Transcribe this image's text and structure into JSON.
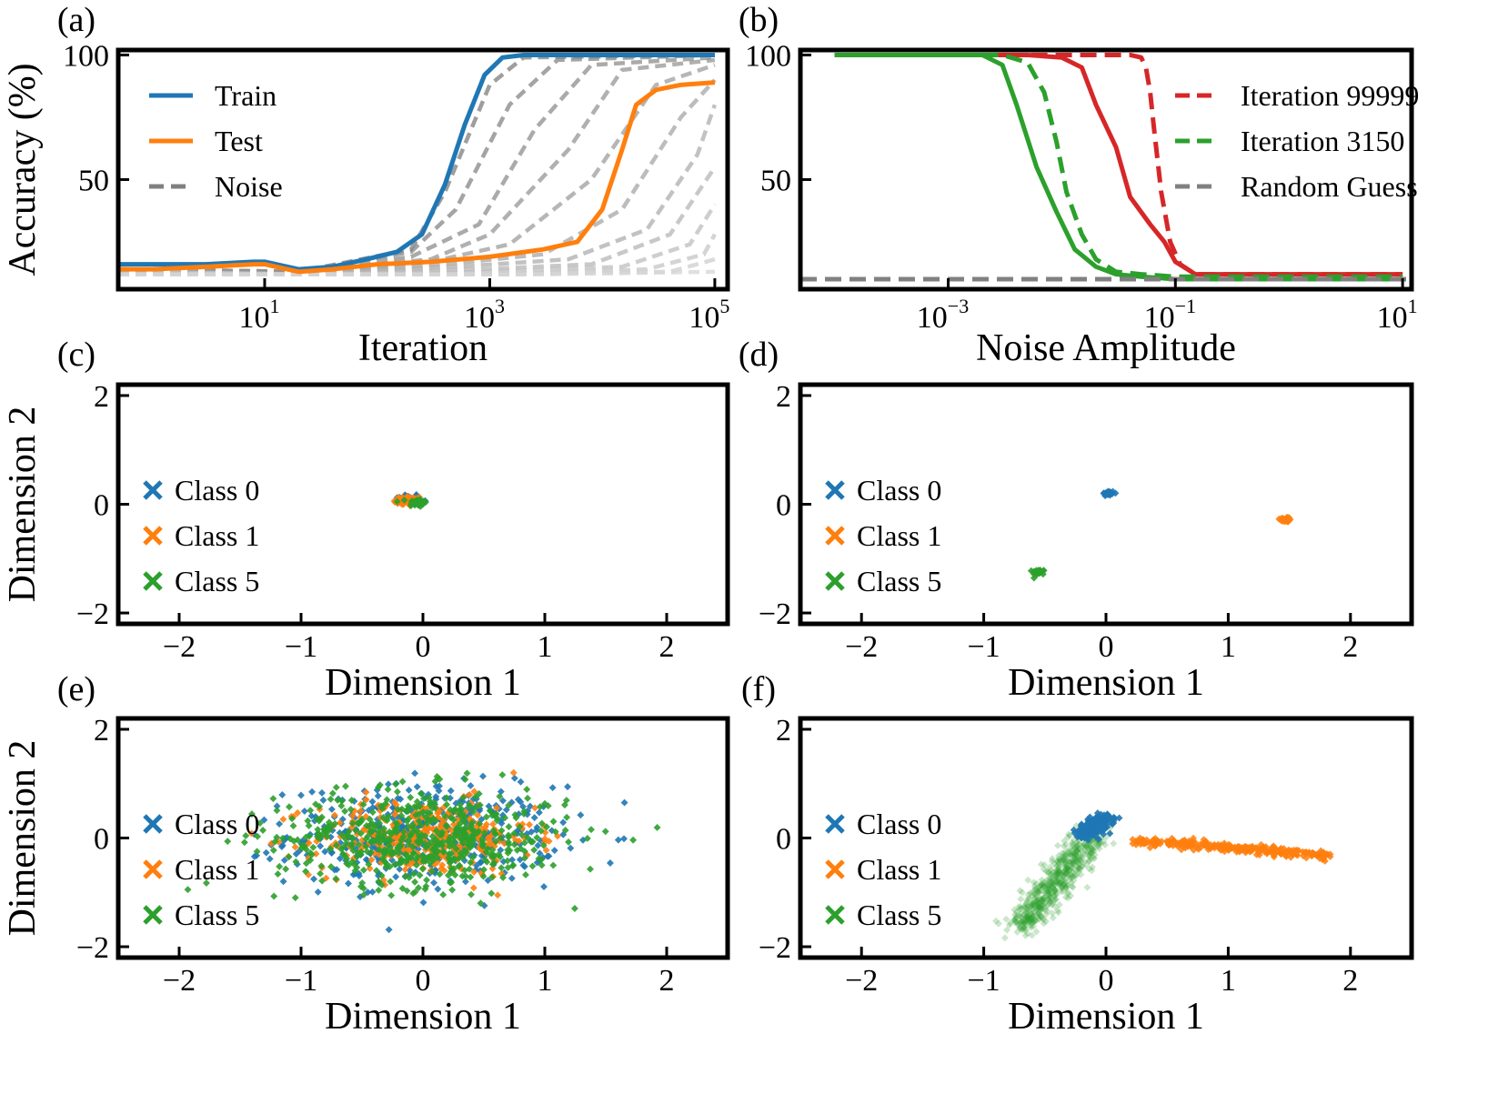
{
  "chart_data": [
    {
      "panel": "(a)",
      "type": "line",
      "xscale": "log",
      "xlabel": "Iteration",
      "ylabel": "Accuracy (%)",
      "xlim": [
        0.5,
        130000
      ],
      "ylim": [
        6,
        102
      ],
      "xticks": [
        {
          "value": 10,
          "base": "10",
          "exp": "1"
        },
        {
          "value": 1000,
          "base": "10",
          "exp": "3"
        },
        {
          "value": 100000,
          "base": "10",
          "exp": "5"
        }
      ],
      "yticks": [
        {
          "value": 50,
          "label": "50"
        },
        {
          "value": 100,
          "label": "100"
        }
      ],
      "legend": {
        "position": "upper-left",
        "entries": [
          {
            "label": "Train",
            "color": "#1f77b4",
            "style": "solid"
          },
          {
            "label": "Test",
            "color": "#ff7f0e",
            "style": "solid"
          },
          {
            "label": "Noise",
            "color": "#808080",
            "style": "dashed"
          }
        ]
      },
      "series": [
        {
          "name": "Train",
          "color": "#1f77b4",
          "style": "solid",
          "x": [
            0.5,
            1,
            3,
            8,
            10,
            20,
            40,
            80,
            150,
            250,
            400,
            600,
            900,
            1300,
            2000,
            5000,
            20000,
            100000
          ],
          "y": [
            16,
            16,
            16,
            17,
            17,
            14,
            15,
            18,
            21,
            28,
            48,
            72,
            92,
            99,
            100,
            100,
            100,
            100
          ]
        },
        {
          "name": "Test",
          "color": "#ff7f0e",
          "style": "solid",
          "x": [
            0.5,
            1,
            3,
            8,
            10,
            20,
            40,
            100,
            300,
            1000,
            3000,
            6000,
            10000,
            15000,
            20000,
            30000,
            50000,
            100000
          ],
          "y": [
            14,
            14,
            15,
            16,
            16,
            13,
            14,
            16,
            17,
            19,
            22,
            25,
            38,
            62,
            80,
            86,
            88,
            89
          ]
        },
        {
          "name": "Noise",
          "color": "#808080",
          "style": "dashed",
          "levels": [
            {
              "x": [
                0.5,
                20,
                200,
                400,
                1000,
                2000,
                100000
              ],
              "y": [
                14,
                13,
                22,
                45,
                88,
                99,
                100
              ]
            },
            {
              "x": [
                0.5,
                20,
                200,
                500,
                1500,
                4000,
                100000
              ],
              "y": [
                14,
                13,
                21,
                38,
                80,
                98,
                100
              ]
            },
            {
              "x": [
                0.5,
                20,
                200,
                800,
                2500,
                8000,
                100000
              ],
              "y": [
                14,
                13,
                19,
                32,
                70,
                96,
                99
              ]
            },
            {
              "x": [
                0.5,
                20,
                300,
                1000,
                5000,
                15000,
                100000
              ],
              "y": [
                14,
                13,
                18,
                28,
                62,
                94,
                98
              ]
            },
            {
              "x": [
                0.5,
                20,
                300,
                1500,
                8000,
                30000,
                100000
              ],
              "y": [
                14,
                12,
                17,
                24,
                50,
                88,
                96
              ]
            },
            {
              "x": [
                0.5,
                20,
                400,
                3000,
                15000,
                50000,
                100000
              ],
              "y": [
                13,
                12,
                16,
                20,
                38,
                75,
                90
              ]
            },
            {
              "x": [
                0.5,
                20,
                500,
                5000,
                25000,
                70000,
                100000
              ],
              "y": [
                13,
                12,
                15,
                18,
                30,
                60,
                80
              ]
            },
            {
              "x": [
                0.5,
                20,
                800,
                8000,
                40000,
                100000
              ],
              "y": [
                13,
                12,
                14,
                16,
                28,
                55
              ]
            },
            {
              "x": [
                0.5,
                20,
                1000,
                15000,
                60000,
                100000
              ],
              "y": [
                13,
                12,
                13,
                15,
                24,
                40
              ]
            },
            {
              "x": [
                0.5,
                20,
                1500,
                25000,
                80000,
                100000
              ],
              "y": [
                12,
                12,
                12,
                14,
                20,
                28
              ]
            },
            {
              "x": [
                0.5,
                20,
                2000,
                40000,
                100000
              ],
              "y": [
                12,
                12,
                12,
                13,
                18
              ]
            },
            {
              "x": [
                0.5,
                20,
                3000,
                100000
              ],
              "y": [
                12,
                12,
                12,
                13
              ]
            }
          ]
        }
      ]
    },
    {
      "panel": "(b)",
      "type": "line",
      "xscale": "log",
      "xlabel": "Noise Amplitude",
      "ylabel": "",
      "xlim": [
        5e-05,
        12
      ],
      "ylim": [
        6,
        102
      ],
      "xticks": [
        {
          "value": 0.001,
          "base": "10",
          "exp": "−3"
        },
        {
          "value": 0.1,
          "base": "10",
          "exp": "−1"
        },
        {
          "value": 10,
          "base": "10",
          "exp": "1"
        }
      ],
      "yticks": [
        {
          "value": 50,
          "label": "50"
        },
        {
          "value": 100,
          "label": "100"
        }
      ],
      "legend": {
        "position": "upper-right",
        "entries": [
          {
            "label": "Iteration 99999",
            "color": "#d62728",
            "style": "dashed"
          },
          {
            "label": "Iteration 3150",
            "color": "#2ca02c",
            "style": "dashed"
          },
          {
            "label": "Random Guess",
            "color": "#808080",
            "style": "dashed"
          }
        ]
      },
      "series": [
        {
          "name": "Iteration 99999 (solid)",
          "color": "#d62728",
          "style": "solid",
          "x": [
            0.0001,
            0.005,
            0.01,
            0.015,
            0.02,
            0.03,
            0.04,
            0.06,
            0.08,
            0.1,
            0.15,
            0.3,
            1,
            10
          ],
          "y": [
            100,
            100,
            99,
            95,
            80,
            63,
            43,
            32,
            25,
            17,
            12,
            12,
            12,
            12
          ]
        },
        {
          "name": "Iteration 99999 (dashed)",
          "color": "#d62728",
          "style": "dashed",
          "x": [
            0.0001,
            0.04,
            0.05,
            0.055,
            0.06,
            0.065,
            0.075,
            0.09,
            0.11,
            0.15,
            0.3,
            1,
            10
          ],
          "y": [
            100,
            100,
            99,
            95,
            85,
            70,
            45,
            25,
            16,
            12,
            12,
            12,
            12
          ]
        },
        {
          "name": "Iteration 3150 (solid)",
          "color": "#2ca02c",
          "style": "solid",
          "x": [
            0.0001,
            0.002,
            0.003,
            0.004,
            0.006,
            0.009,
            0.013,
            0.02,
            0.03,
            0.05,
            0.1,
            0.3,
            1,
            10
          ],
          "y": [
            100,
            100,
            96,
            80,
            55,
            37,
            22,
            15,
            12,
            11,
            10,
            10,
            10,
            10
          ]
        },
        {
          "name": "Iteration 3150 (dashed)",
          "color": "#2ca02c",
          "style": "dashed",
          "x": [
            0.0001,
            0.003,
            0.005,
            0.007,
            0.009,
            0.011,
            0.015,
            0.02,
            0.03,
            0.05,
            0.1,
            0.3,
            1,
            10
          ],
          "y": [
            100,
            100,
            97,
            85,
            65,
            45,
            28,
            18,
            13,
            12,
            11,
            11,
            11,
            11
          ]
        },
        {
          "name": "Random Guess",
          "color": "#808080",
          "style": "dashed",
          "x": [
            5e-05,
            12
          ],
          "y": [
            10,
            10
          ]
        }
      ]
    },
    {
      "panel": "(c)",
      "type": "scatter",
      "xlabel": "Dimension 1",
      "ylabel": "Dimension 2",
      "xlim": [
        -2.5,
        2.5
      ],
      "ylim": [
        -2.2,
        2.2
      ],
      "xticks": [
        "−2",
        "−1",
        "0",
        "1",
        "2"
      ],
      "yticks": [
        "−2",
        "0",
        "2"
      ],
      "legend": {
        "position": "center-left",
        "entries": [
          {
            "label": "Class 0",
            "color": "#1f77b4",
            "marker": "x"
          },
          {
            "label": "Class 1",
            "color": "#ff7f0e",
            "marker": "x"
          },
          {
            "label": "Class 5",
            "color": "#2ca02c",
            "marker": "x"
          }
        ]
      },
      "clusters": [
        {
          "class": "Class 0",
          "color": "#1f77b4",
          "center": [
            -0.12,
            0.1
          ],
          "spread": [
            0.05,
            0.05
          ],
          "n": 30
        },
        {
          "class": "Class 1",
          "color": "#ff7f0e",
          "center": [
            -0.12,
            0.06
          ],
          "spread": [
            0.06,
            0.05
          ],
          "n": 45
        },
        {
          "class": "Class 5",
          "color": "#2ca02c",
          "center": [
            -0.05,
            0.03
          ],
          "spread": [
            0.04,
            0.04
          ],
          "n": 35
        }
      ]
    },
    {
      "panel": "(d)",
      "type": "scatter",
      "xlabel": "Dimension 1",
      "ylabel": "",
      "xlim": [
        -2.5,
        2.5
      ],
      "ylim": [
        -2.2,
        2.2
      ],
      "xticks": [
        "−2",
        "−1",
        "0",
        "1",
        "2"
      ],
      "yticks": [
        "−2",
        "0",
        "2"
      ],
      "legend": {
        "position": "center-left",
        "entries": [
          {
            "label": "Class 0",
            "color": "#1f77b4",
            "marker": "x"
          },
          {
            "label": "Class 1",
            "color": "#ff7f0e",
            "marker": "x"
          },
          {
            "label": "Class 5",
            "color": "#2ca02c",
            "marker": "x"
          }
        ]
      },
      "clusters": [
        {
          "class": "Class 0",
          "color": "#1f77b4",
          "center": [
            0.02,
            0.2
          ],
          "spread": [
            0.025,
            0.025
          ],
          "n": 30
        },
        {
          "class": "Class 1",
          "color": "#ff7f0e",
          "center": [
            1.47,
            -0.28
          ],
          "spread": [
            0.025,
            0.025
          ],
          "n": 30
        },
        {
          "class": "Class 5",
          "color": "#2ca02c",
          "center": [
            -0.55,
            -1.25
          ],
          "spread": [
            0.025,
            0.025
          ],
          "n": 30
        }
      ]
    },
    {
      "panel": "(e)",
      "type": "scatter",
      "xlabel": "Dimension 1",
      "ylabel": "Dimension 2",
      "xlim": [
        -2.5,
        2.5
      ],
      "ylim": [
        -2.2,
        2.2
      ],
      "xticks": [
        "−2",
        "−1",
        "0",
        "1",
        "2"
      ],
      "yticks": [
        "−2",
        "0",
        "2"
      ],
      "legend": {
        "position": "center-left",
        "entries": [
          {
            "label": "Class 0",
            "color": "#1f77b4",
            "marker": "x"
          },
          {
            "label": "Class 1",
            "color": "#ff7f0e",
            "marker": "x"
          },
          {
            "label": "Class 5",
            "color": "#2ca02c",
            "marker": "x"
          }
        ]
      },
      "clusters": [
        {
          "class": "Class 0",
          "color": "#1f77b4",
          "center": [
            0.0,
            0.05
          ],
          "spread": [
            0.55,
            0.45
          ],
          "n": 450
        },
        {
          "class": "Class 1",
          "color": "#ff7f0e",
          "center": [
            0.0,
            0.0
          ],
          "spread": [
            0.45,
            0.35
          ],
          "n": 350
        },
        {
          "class": "Class 5",
          "color": "#2ca02c",
          "center": [
            0.0,
            0.0
          ],
          "spread": [
            0.6,
            0.45
          ],
          "n": 550
        }
      ]
    },
    {
      "panel": "(f)",
      "type": "scatter",
      "xlabel": "Dimension 1",
      "ylabel": "",
      "xlim": [
        -2.5,
        2.5
      ],
      "ylim": [
        -2.2,
        2.2
      ],
      "xticks": [
        "−2",
        "−1",
        "0",
        "1",
        "2"
      ],
      "yticks": [
        "−2",
        "0",
        "2"
      ],
      "legend": {
        "position": "center-left",
        "entries": [
          {
            "label": "Class 0",
            "color": "#1f77b4",
            "marker": "x"
          },
          {
            "label": "Class 1",
            "color": "#ff7f0e",
            "marker": "x"
          },
          {
            "label": "Class 5",
            "color": "#2ca02c",
            "marker": "x"
          }
        ]
      },
      "streaks": [
        {
          "class": "Class 5",
          "color": "#2ca02c",
          "from": [
            -0.72,
            -1.7
          ],
          "to": [
            -0.1,
            0.1
          ],
          "width": 0.08,
          "n": 600,
          "opacity": 0.25
        },
        {
          "class": "Class 0",
          "color": "#1f77b4",
          "from": [
            -0.2,
            0.05
          ],
          "to": [
            0.0,
            0.38
          ],
          "width": 0.05,
          "n": 180,
          "opacity": 0.9
        },
        {
          "class": "Class 1",
          "color": "#ff7f0e",
          "from": [
            0.25,
            -0.05
          ],
          "to": [
            1.82,
            -0.32
          ],
          "width": 0.04,
          "n": 300,
          "opacity": 0.85
        }
      ]
    }
  ]
}
